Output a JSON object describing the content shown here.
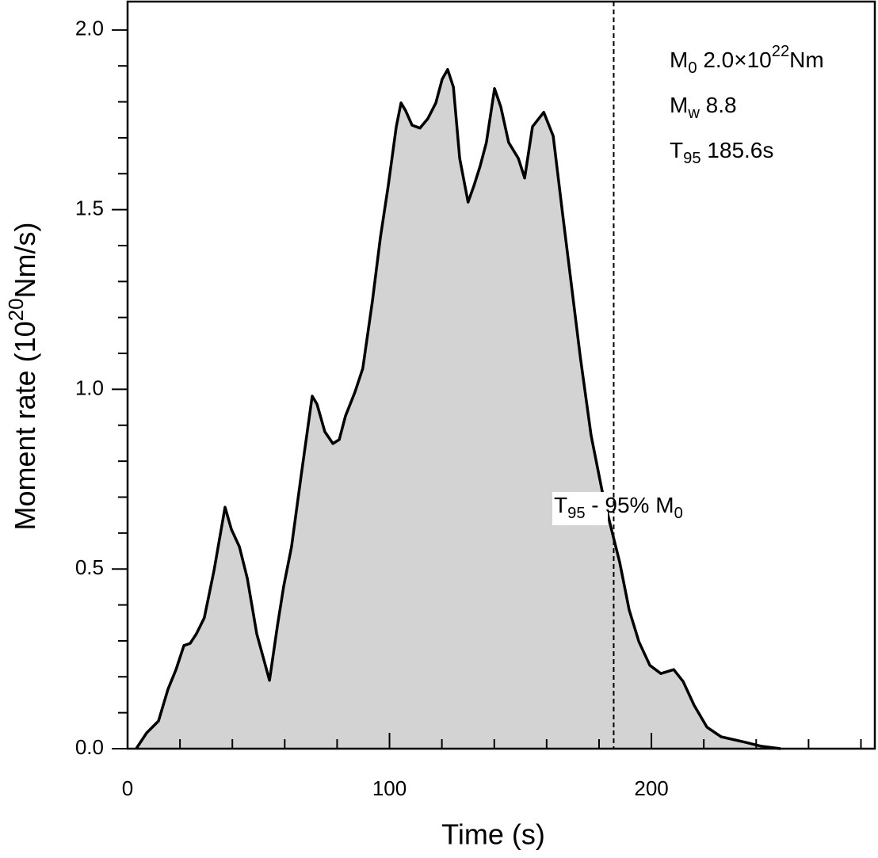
{
  "chart_data": {
    "type": "area",
    "xlabel": "Time (s)",
    "ylabel": [
      {
        "text": "Moment rate (10"
      },
      {
        "text": "20",
        "script": "sup"
      },
      {
        "text": "Nm/s)"
      }
    ],
    "x": [
      3.3,
      7.3,
      11.8,
      15.4,
      18.5,
      21.5,
      23.9,
      26.3,
      29.3,
      33,
      37.2,
      39.6,
      42.7,
      45.7,
      49.3,
      54.2,
      57.2,
      59.6,
      62.6,
      66.3,
      70.5,
      72.3,
      75.3,
      78.4,
      80.8,
      83.2,
      86.8,
      89.8,
      93.5,
      96.5,
      99.5,
      102.6,
      104.4,
      106.2,
      108.6,
      111.6,
      114.6,
      117.7,
      120.1,
      122.2,
      124.4,
      126.8,
      130,
      132.2,
      134.6,
      137,
      140.1,
      142.5,
      145.5,
      149.2,
      151.6,
      154.6,
      158.9,
      162.5,
      166.1,
      169.1,
      172.8,
      177,
      181.2,
      184.9,
      187.9,
      191.5,
      195.2,
      199.4,
      203.6,
      208.5,
      212.1,
      216.3,
      221.2,
      226.6,
      235.7,
      241.8,
      249.3
    ],
    "series": [
      {
        "color": "#d3d3d3",
        "values": [
          0,
          0.044,
          0.077,
          0.165,
          0.22,
          0.287,
          0.293,
          0.32,
          0.364,
          0.496,
          0.672,
          0.611,
          0.562,
          0.474,
          0.32,
          0.19,
          0.342,
          0.452,
          0.562,
          0.761,
          0.981,
          0.959,
          0.882,
          0.849,
          0.86,
          0.926,
          0.992,
          1.058,
          1.246,
          1.422,
          1.566,
          1.731,
          1.797,
          1.775,
          1.735,
          1.727,
          1.753,
          1.797,
          1.863,
          1.89,
          1.841,
          1.643,
          1.521,
          1.566,
          1.621,
          1.687,
          1.837,
          1.786,
          1.687,
          1.643,
          1.588,
          1.731,
          1.771,
          1.705,
          1.488,
          1.312,
          1.092,
          0.871,
          0.717,
          0.606,
          0.518,
          0.386,
          0.298,
          0.232,
          0.209,
          0.22,
          0.187,
          0.121,
          0.06,
          0.033,
          0.018,
          0.007,
          0
        ]
      }
    ],
    "xlim": [
      0,
      285.3
    ],
    "ylim": [
      0,
      2.079
    ],
    "xticks": [
      0,
      100,
      200
    ],
    "yticks": [
      {
        "value": 0,
        "label": "0.0"
      },
      {
        "value": 0.5,
        "label": "0.5"
      },
      {
        "value": 1,
        "label": "1.0"
      },
      {
        "value": 1.5,
        "label": "1.5"
      },
      {
        "value": 2,
        "label": "2.0"
      }
    ],
    "xminorticks": [
      20,
      40,
      60,
      80,
      120,
      140,
      160,
      180,
      220,
      240,
      260,
      280
    ],
    "yminorticks": [
      0.1,
      0.2,
      0.3,
      0.4,
      0.6,
      0.7,
      0.8,
      0.9,
      1.1,
      1.2,
      1.3,
      1.4,
      1.6,
      1.7,
      1.8,
      1.9
    ],
    "vline": 185.6,
    "vline_label": [
      {
        "text": "T"
      },
      {
        "text": "95",
        "script": "sub"
      },
      {
        "text": " - 95% M"
      },
      {
        "text": "0",
        "script": "sub"
      }
    ],
    "annotations": [
      [
        {
          "text": "M"
        },
        {
          "text": "0",
          "script": "sub"
        },
        {
          "text": " 2.0×10"
        },
        {
          "text": "22",
          "script": "sup"
        },
        {
          "text": "Nm"
        }
      ],
      [
        {
          "text": "M"
        },
        {
          "text": "w",
          "script": "sub"
        },
        {
          "text": " 8.8"
        }
      ],
      [
        {
          "text": "T"
        },
        {
          "text": "95",
          "script": "sub"
        },
        {
          "text": " 185.6s"
        }
      ]
    ]
  }
}
